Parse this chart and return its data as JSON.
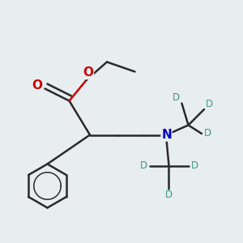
{
  "bg_color": "#e8edf0",
  "bond_color": "#2a2a2a",
  "o_color": "#cc0000",
  "n_color": "#0000cc",
  "d_color": "#3a9a8a",
  "bond_lw": 1.8,
  "font_size_atom": 10,
  "font_size_d": 8.5,
  "xlim": [
    0.0,
    1.0
  ],
  "ylim": [
    0.05,
    1.05
  ]
}
